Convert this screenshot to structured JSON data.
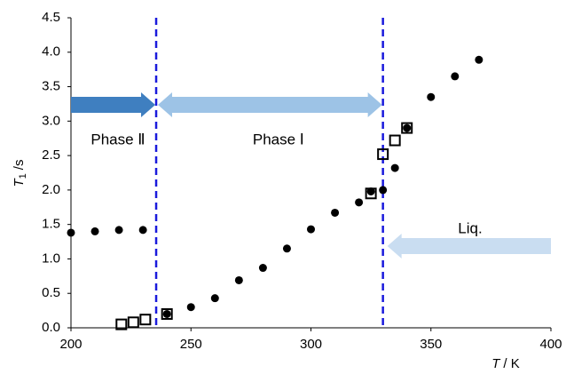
{
  "chart_data": {
    "type": "scatter",
    "xlabel": {
      "symbol": "T",
      "unit": "/ K"
    },
    "ylabel": {
      "symbol": "T",
      "subscript": "1",
      "unit": "/s"
    },
    "xlim": [
      200,
      400
    ],
    "xticks": [
      200,
      250,
      300,
      350,
      400
    ],
    "ylim": [
      0,
      4.5
    ],
    "yticks": [
      {
        "value": 0,
        "label": "0.0"
      },
      0.5,
      {
        "value": 1,
        "label": "1.0"
      },
      1.5,
      {
        "value": 2,
        "label": "2.0"
      },
      2.5,
      {
        "value": 3,
        "label": "3.0"
      },
      3.5,
      {
        "value": 4,
        "label": "4.0"
      },
      4.5
    ],
    "grid": false,
    "series": [
      {
        "marker": "circle",
        "color": "#000000",
        "x": [
          200,
          210,
          220,
          230,
          240,
          250,
          260,
          270,
          280,
          290,
          300,
          310,
          320,
          325,
          330,
          335,
          340,
          350,
          360,
          370
        ],
        "values": [
          1.38,
          1.4,
          1.42,
          1.42,
          0.2,
          0.3,
          0.43,
          0.69,
          0.87,
          1.15,
          1.43,
          1.67,
          1.82,
          1.98,
          2.0,
          2.32,
          2.9,
          3.35,
          3.65,
          3.89
        ]
      },
      {
        "marker": "square",
        "color": "#000000",
        "x": [
          221,
          226,
          231,
          240,
          325,
          330,
          335,
          340
        ],
        "values": [
          0.05,
          0.08,
          0.12,
          0.2,
          1.95,
          2.52,
          2.72,
          2.9
        ]
      }
    ],
    "phase_boundaries": [
      235.5,
      330
    ],
    "phase_labels": [
      "Phase Ⅱ",
      "Phase Ⅰ",
      "Liq."
    ]
  }
}
